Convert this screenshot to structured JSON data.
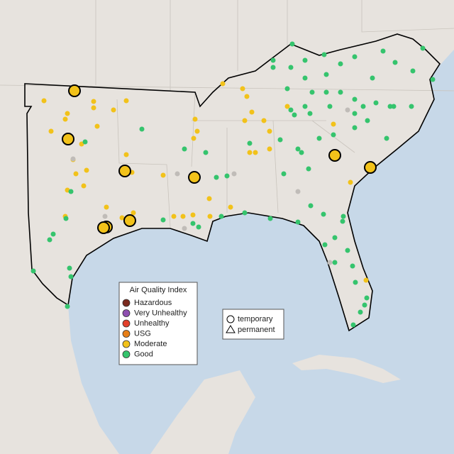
{
  "legend": {
    "title": "Air Quality Index",
    "items": [
      {
        "label": "Hazardous",
        "color": "#7b2a1e"
      },
      {
        "label": "Very Unhealthy",
        "color": "#8e4fb0"
      },
      {
        "label": "Unhealthy",
        "color": "#e2402b"
      },
      {
        "label": "USG",
        "color": "#e67e17"
      },
      {
        "label": "Moderate",
        "color": "#f2c21a"
      },
      {
        "label": "Good",
        "color": "#35c46d"
      }
    ]
  },
  "shape_legend": {
    "items": [
      "temporary",
      "permanent"
    ]
  }
}
